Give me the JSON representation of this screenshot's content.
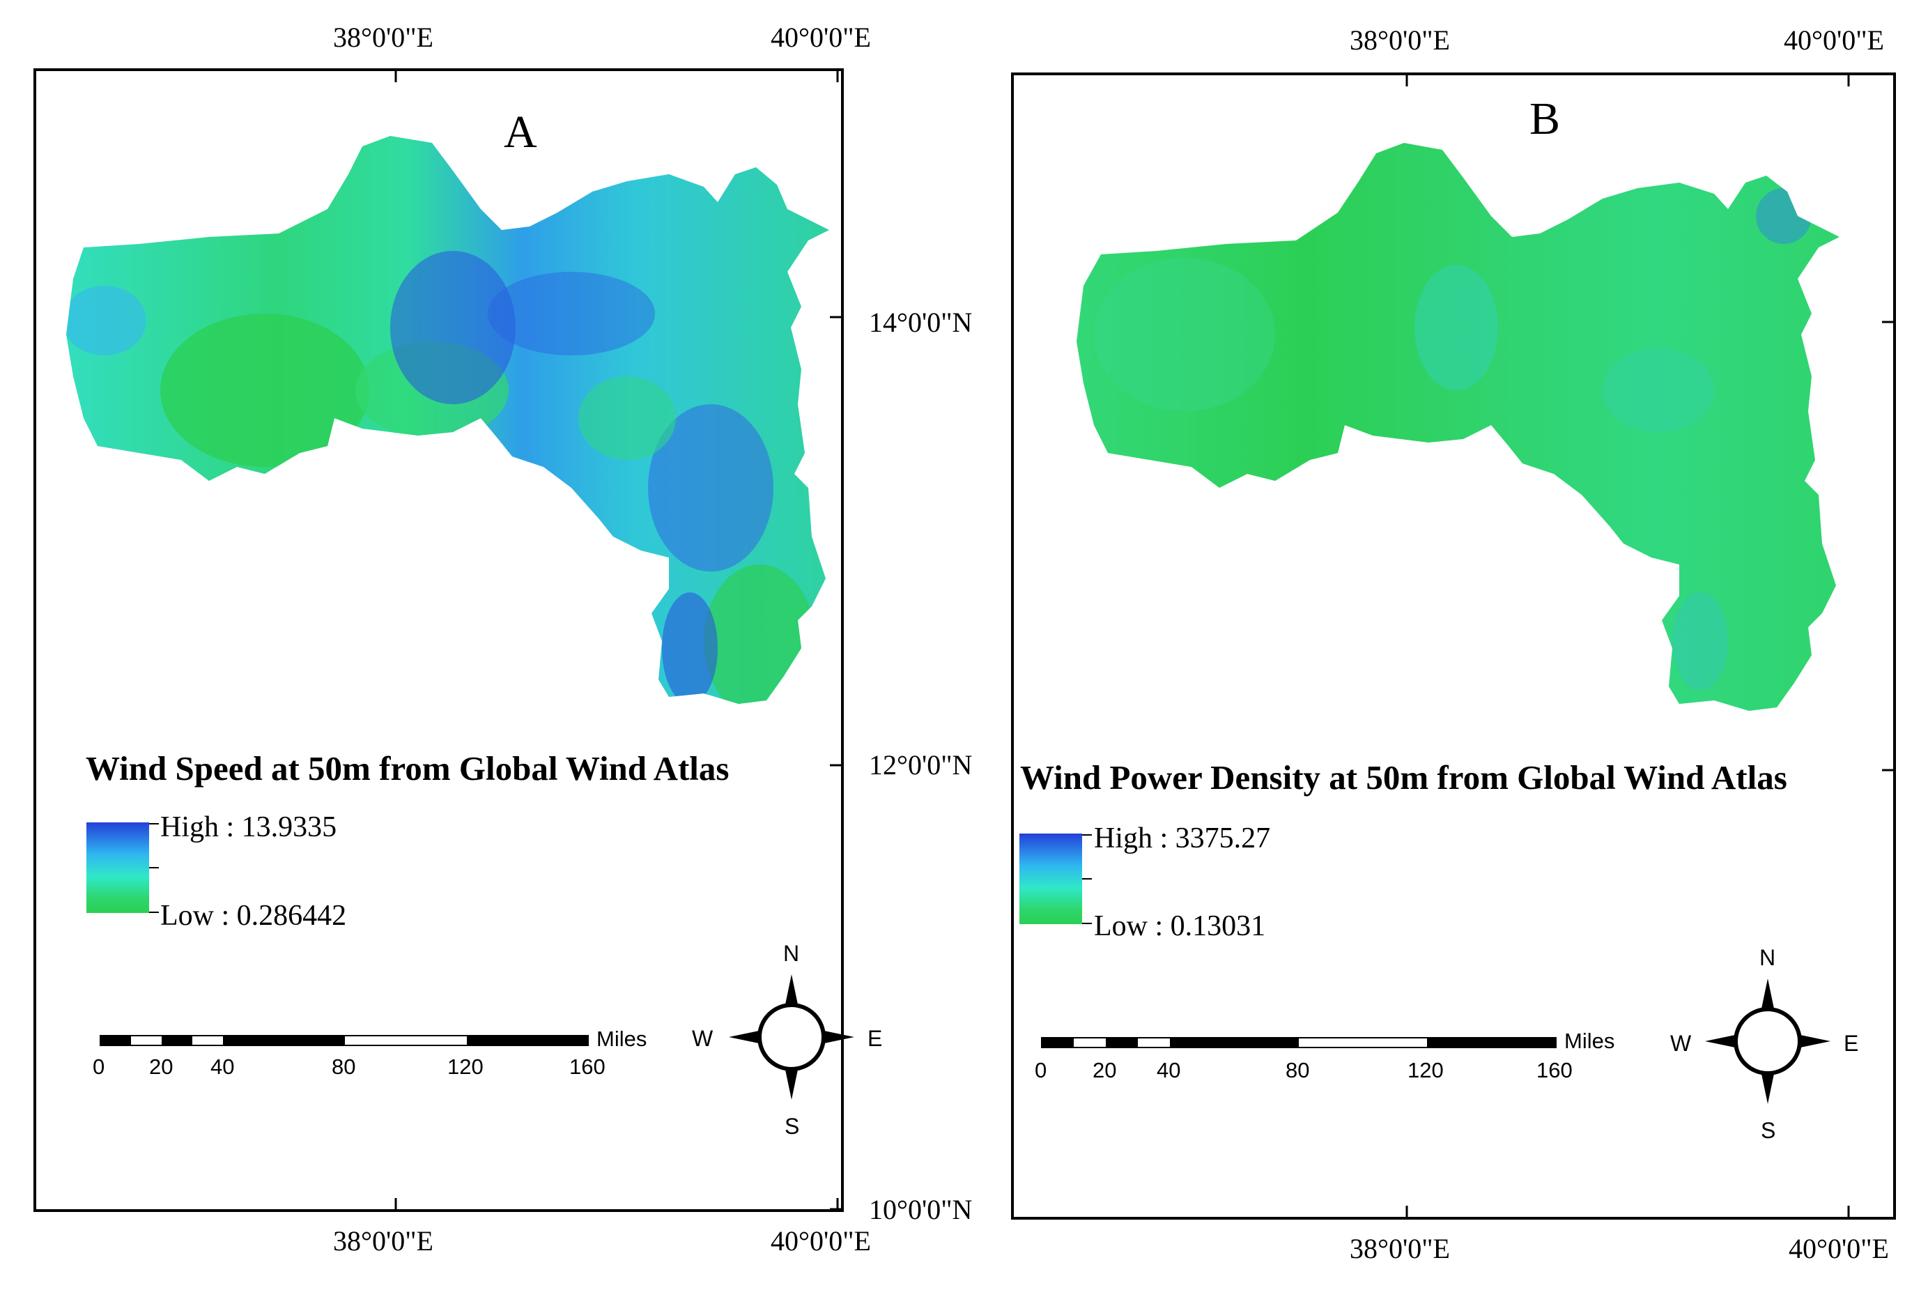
{
  "panels": [
    {
      "letter": "A",
      "legend_title": "Wind Speed at 50m from Global Wind Atlas",
      "high_label": "High : 13.9335",
      "low_label": "Low : 0.286442",
      "top_labels": [
        "38°0'0\"E",
        "40°0'0\"E"
      ],
      "bottom_labels": [
        "38°0'0\"E",
        "40°0'0\"E"
      ],
      "right_labels": [
        "14°0'0\"N",
        "12°0'0\"N",
        "10°0'0\"N"
      ]
    },
    {
      "letter": "B",
      "legend_title": "Wind Power Density at 50m from Global Wind Atlas",
      "high_label": "High : 3375.27",
      "low_label": "Low : 0.13031",
      "top_labels": [
        "38°0'0\"E",
        "40°0'0\"E"
      ],
      "bottom_labels": [
        "38°0'0\"E",
        "40°0'0\"E"
      ]
    }
  ],
  "scalebar": {
    "ticks": [
      "0",
      "20",
      "40",
      "80",
      "120",
      "160"
    ],
    "unit": "Miles"
  },
  "compass": {
    "n": "N",
    "s": "S",
    "e": "E",
    "w": "W"
  },
  "colors": {
    "high": "#2440d8",
    "mid": "#2fe8c8",
    "low": "#2ccf55"
  }
}
